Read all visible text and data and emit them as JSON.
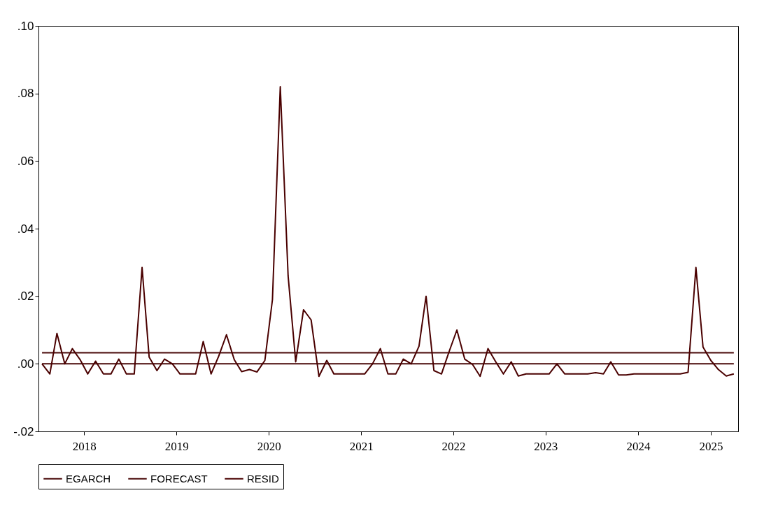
{
  "chart_data": {
    "type": "line",
    "x": [
      "2018-01-15",
      "2018-02-15",
      "2018-03-15",
      "2018-04-15",
      "2018-05-15",
      "2018-06-15",
      "2018-07-15",
      "2018-08-15",
      "2018-09-15",
      "2018-10-15",
      "2018-11-15",
      "2018-12-15",
      "2019-01-15",
      "2019-02-15",
      "2019-03-15",
      "2019-04-15",
      "2019-05-15",
      "2019-06-15",
      "2019-07-15",
      "2019-08-15",
      "2019-09-15",
      "2019-10-15",
      "2019-11-15",
      "2019-12-15",
      "2020-01-15",
      "2020-02-15",
      "2020-03-15",
      "2020-04-15",
      "2020-05-15",
      "2020-06-15",
      "2020-07-15",
      "2020-08-15",
      "2020-09-15",
      "2020-10-15",
      "2020-11-15",
      "2020-12-15",
      "2021-01-15",
      "2021-02-15",
      "2021-03-15",
      "2021-04-15",
      "2021-05-15",
      "2021-06-15",
      "2021-07-15",
      "2021-08-15",
      "2021-09-15",
      "2021-10-15",
      "2021-11-15",
      "2021-12-15",
      "2022-01-15",
      "2022-02-15",
      "2022-03-15",
      "2022-04-15",
      "2022-05-15",
      "2022-06-15",
      "2022-07-15",
      "2022-08-15",
      "2022-09-15",
      "2022-10-15",
      "2022-11-15",
      "2022-12-15",
      "2023-01-15",
      "2023-02-15",
      "2023-03-15",
      "2023-04-15",
      "2023-05-15",
      "2023-06-15",
      "2023-07-15",
      "2023-08-15",
      "2023-09-15",
      "2023-10-15",
      "2023-11-15",
      "2023-12-15",
      "2024-01-15",
      "2024-02-15",
      "2024-03-15",
      "2024-04-15",
      "2024-05-15",
      "2024-06-15",
      "2024-07-15",
      "2024-08-15",
      "2024-09-15",
      "2024-10-15",
      "2024-11-15",
      "2024-12-15",
      "2025-01-15",
      "2025-02-15",
      "2025-03-15",
      "2025-04-15",
      "2025-05-15",
      "2025-06-15",
      "2025-07-15"
    ],
    "series": [
      {
        "name": "EGARCH",
        "color": "#4a0a0a",
        "x": [
          "2018-01-15",
          "2025-07-15"
        ],
        "values": [
          0.0033,
          0.0033
        ]
      },
      {
        "name": "FORECAST",
        "color": "#4a0a0a",
        "x": [
          "2018-01-15",
          "2025-07-15"
        ],
        "values": [
          0.0,
          0.0
        ]
      },
      {
        "name": "RESID",
        "color": "#4a0000",
        "values": [
          0.0,
          -0.003,
          0.009,
          0.0,
          0.0045,
          0.0012,
          -0.003,
          0.0008,
          -0.003,
          -0.003,
          0.0014,
          -0.003,
          -0.003,
          0.0285,
          0.002,
          -0.002,
          0.0014,
          0.0,
          -0.003,
          -0.003,
          -0.003,
          0.0066,
          -0.003,
          0.0022,
          0.0086,
          0.0012,
          -0.0023,
          -0.0017,
          -0.0024,
          0.001,
          0.019,
          0.082,
          0.026,
          0.0006,
          0.016,
          0.013,
          -0.0037,
          0.001,
          -0.003,
          -0.003,
          -0.003,
          -0.003,
          -0.003,
          0.0,
          0.0045,
          -0.003,
          -0.003,
          0.0014,
          0.0,
          0.0052,
          0.02,
          -0.002,
          -0.003,
          0.0038,
          0.01,
          0.0014,
          -0.0002,
          -0.0037,
          0.0045,
          0.0007,
          -0.003,
          0.0006,
          -0.0036,
          -0.003,
          -0.003,
          -0.003,
          -0.003,
          0.0,
          -0.003,
          -0.003,
          -0.003,
          -0.003,
          -0.0026,
          -0.003,
          0.0006,
          -0.0033,
          -0.0033,
          -0.003,
          -0.003,
          -0.003,
          -0.003,
          -0.003,
          -0.003,
          -0.003,
          -0.0025,
          0.0285,
          0.005,
          0.001,
          -0.0017,
          -0.0036,
          -0.003
        ]
      }
    ],
    "xlim": [
      "2018-01-01",
      "2025-08-01"
    ],
    "xticks": [
      {
        "value": "2018-07-01",
        "label": "2018"
      },
      {
        "value": "2019-07-01",
        "label": "2019"
      },
      {
        "value": "2020-07-01",
        "label": "2020"
      },
      {
        "value": "2021-07-01",
        "label": "2021"
      },
      {
        "value": "2022-07-01",
        "label": "2022"
      },
      {
        "value": "2023-07-01",
        "label": "2023"
      },
      {
        "value": "2024-07-01",
        "label": "2024"
      },
      {
        "value": "2025-04-15",
        "label": "2025"
      }
    ],
    "ylim": [
      -0.02,
      0.1
    ],
    "yticks": [
      {
        "value": -0.02,
        "label": "-.02"
      },
      {
        "value": 0,
        "label": ".00"
      },
      {
        "value": 0.02,
        "label": ".02"
      },
      {
        "value": 0.04,
        "label": ".04"
      },
      {
        "value": 0.06,
        "label": ".06"
      },
      {
        "value": 0.08,
        "label": ".08"
      },
      {
        "value": 0.1,
        "label": ".10"
      }
    ],
    "grid": false,
    "legend": "bottom"
  }
}
